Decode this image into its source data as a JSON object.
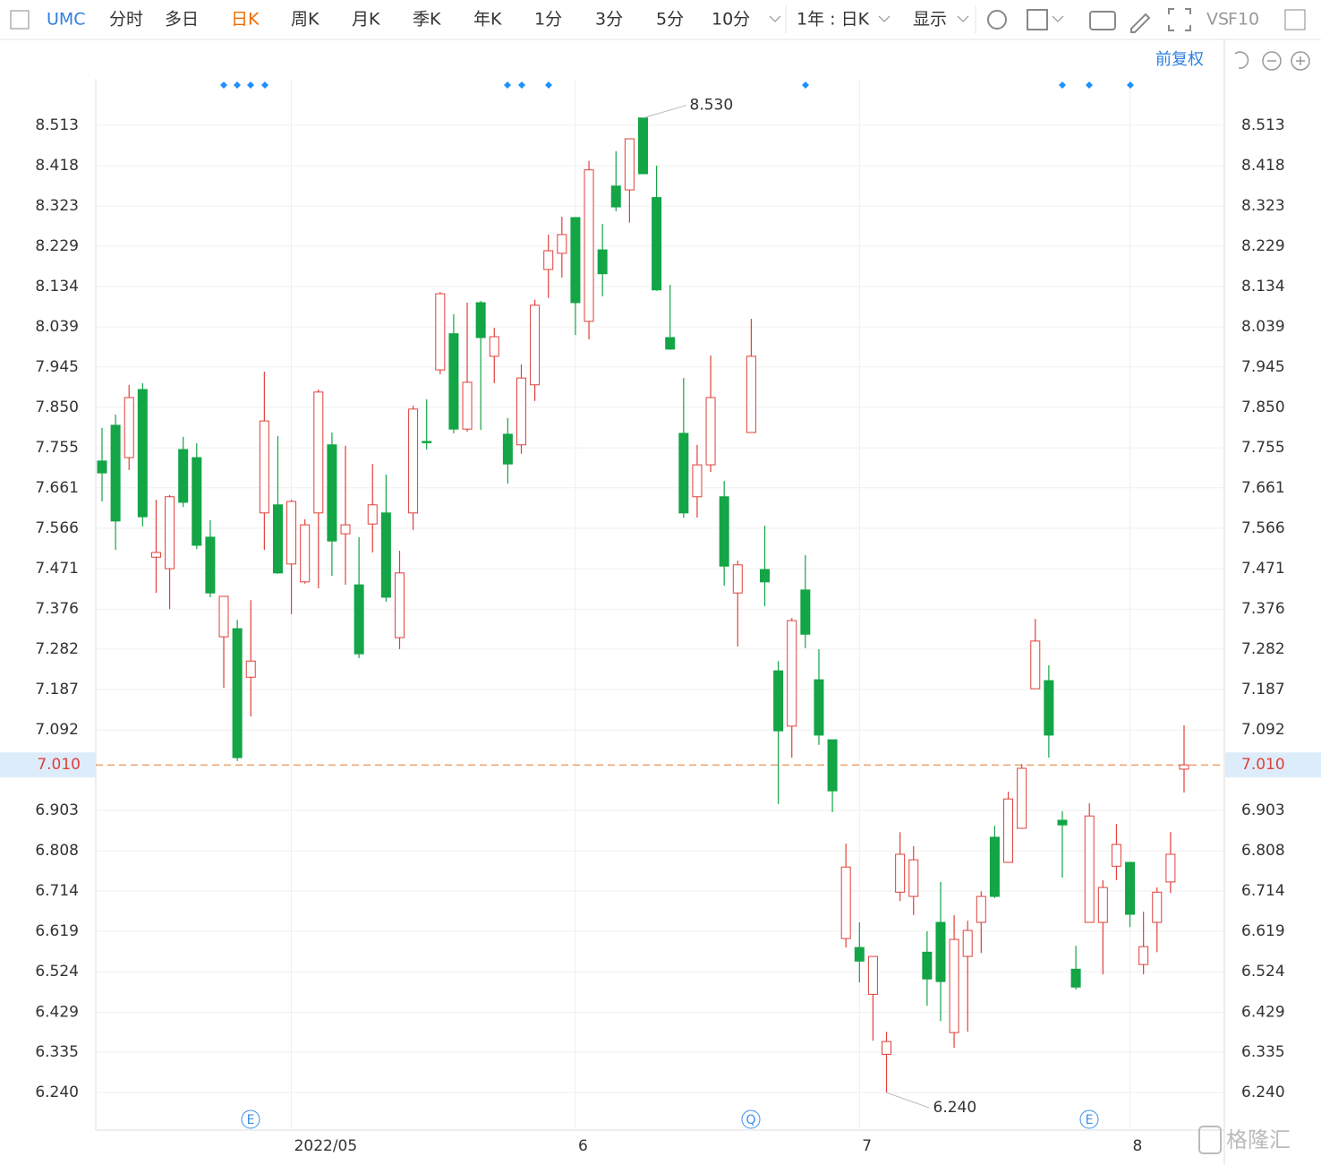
{
  "toolbar": {
    "symbol": "UMC",
    "periods": [
      "分时",
      "多日",
      "日K",
      "周K",
      "月K",
      "季K",
      "年K",
      "1分",
      "3分",
      "5分",
      "10分"
    ],
    "active_period": 2,
    "range": "1年 : 日K",
    "display": "显示",
    "vs": "VS",
    "f10": "F10",
    "adjust": "前复权"
  },
  "watermark": "格隆汇",
  "chart_data": {
    "type": "candlestick",
    "categories": [
      null,
      null,
      null,
      null,
      null,
      null,
      null,
      null,
      null,
      null,
      null,
      null,
      null,
      null,
      "2022/05",
      null,
      null,
      null,
      null,
      null,
      null,
      null,
      null,
      null,
      null,
      null,
      null,
      null,
      null,
      null,
      null,
      null,
      null,
      null,
      null,
      "6",
      null,
      null,
      null,
      null,
      null,
      null,
      null,
      null,
      null,
      null,
      null,
      null,
      null,
      null,
      null,
      null,
      null,
      null,
      null,
      null,
      "7",
      null,
      null,
      null,
      null,
      null,
      null,
      null,
      null,
      null,
      null,
      null,
      null,
      null,
      null,
      null,
      null,
      null,
      null,
      null,
      "8",
      null,
      null,
      null,
      null
    ],
    "open": [
      7.724,
      7.808,
      7.732,
      7.892,
      7.498,
      7.471,
      7.751,
      7.732,
      7.545,
      7.311,
      7.33,
      7.216,
      7.602,
      7.621,
      7.482,
      7.44,
      7.602,
      7.762,
      7.553,
      7.433,
      7.576,
      7.602,
      7.309,
      7.602,
      7.77,
      7.938,
      8.023,
      7.799,
      8.096,
      7.97,
      7.787,
      7.762,
      7.903,
      8.174,
      8.212,
      8.296,
      8.052,
      8.22,
      8.37,
      8.361,
      8.53,
      8.343,
      8.014,
      7.789,
      7.64,
      7.715,
      7.64,
      7.414,
      7.791,
      7.469,
      7.231,
      7.101,
      7.421,
      7.21,
      7.069,
      6.602,
      6.581,
      6.471,
      6.33,
      6.711,
      6.701,
      6.57,
      6.64,
      6.381,
      6.56,
      6.64,
      6.84,
      6.781,
      6.861,
      7.189,
      7.208,
      6.88,
      6.53,
      6.64,
      6.64,
      6.772,
      6.781,
      6.541,
      6.64,
      6.735,
      7.0
    ],
    "high": [
      7.802,
      7.833,
      7.903,
      7.907,
      7.633,
      7.644,
      7.781,
      7.766,
      7.585,
      7.406,
      7.351,
      7.397,
      7.934,
      7.783,
      7.633,
      7.587,
      7.892,
      7.791,
      7.76,
      7.545,
      7.717,
      7.692,
      7.513,
      7.854,
      7.869,
      8.121,
      8.069,
      8.096,
      8.1,
      8.037,
      7.825,
      7.951,
      8.103,
      8.256,
      8.298,
      8.296,
      8.429,
      8.281,
      8.452,
      8.481,
      8.53,
      8.418,
      8.138,
      7.919,
      7.762,
      7.972,
      7.677,
      7.49,
      8.058,
      7.572,
      7.254,
      7.355,
      7.503,
      7.282,
      7.069,
      6.825,
      6.64,
      6.56,
      6.383,
      6.852,
      6.819,
      6.619,
      6.735,
      6.657,
      6.644,
      6.713,
      6.867,
      6.947,
      7.012,
      7.353,
      7.244,
      6.901,
      6.585,
      6.92,
      6.739,
      6.871,
      6.781,
      6.665,
      6.722,
      6.852,
      7.103
    ],
    "low": [
      7.629,
      7.515,
      7.703,
      7.57,
      7.414,
      7.376,
      7.616,
      7.517,
      7.404,
      7.191,
      7.019,
      7.124,
      7.515,
      7.459,
      7.364,
      7.436,
      7.425,
      7.454,
      7.433,
      7.261,
      7.509,
      7.393,
      7.282,
      7.562,
      7.751,
      7.928,
      7.789,
      7.793,
      7.797,
      7.907,
      7.671,
      7.741,
      7.865,
      8.107,
      8.155,
      8.02,
      8.01,
      8.111,
      8.311,
      8.284,
      8.399,
      8.124,
      7.985,
      7.591,
      7.591,
      7.698,
      7.431,
      7.288,
      7.791,
      7.383,
      6.918,
      7.027,
      7.284,
      7.057,
      6.899,
      6.581,
      6.499,
      6.362,
      6.24,
      6.69,
      6.657,
      6.444,
      6.408,
      6.345,
      6.383,
      6.568,
      6.697,
      6.781,
      6.861,
      7.189,
      7.027,
      6.745,
      6.482,
      6.64,
      6.518,
      6.739,
      6.629,
      6.518,
      6.57,
      6.709,
      6.945
    ],
    "close": [
      7.696,
      7.583,
      7.873,
      7.593,
      7.509,
      7.64,
      7.627,
      7.526,
      7.414,
      7.406,
      7.027,
      7.254,
      7.818,
      7.461,
      7.629,
      7.574,
      7.886,
      7.536,
      7.574,
      7.271,
      7.621,
      7.404,
      7.461,
      7.846,
      7.768,
      8.117,
      7.799,
      7.909,
      8.014,
      8.016,
      7.717,
      7.919,
      8.09,
      8.218,
      8.256,
      8.096,
      8.408,
      8.164,
      8.321,
      8.481,
      8.399,
      8.126,
      7.987,
      7.602,
      7.715,
      7.873,
      7.477,
      7.48,
      7.97,
      7.44,
      7.09,
      7.349,
      7.317,
      7.08,
      6.949,
      6.77,
      6.549,
      6.56,
      6.36,
      6.8,
      6.787,
      6.507,
      6.501,
      6.6,
      6.621,
      6.701,
      6.701,
      6.93,
      7.002,
      7.301,
      7.08,
      6.869,
      6.488,
      6.89,
      6.722,
      6.823,
      6.659,
      6.583,
      6.711,
      6.8,
      7.01
    ],
    "up_color": "#e0403a",
    "down_color": "#13a546",
    "ylim": [
      6.152,
      8.622
    ],
    "yticks": [
      8.513,
      8.418,
      8.323,
      8.229,
      8.134,
      8.039,
      7.945,
      {
        "value": 7.85,
        "label": "7.850"
      },
      7.755,
      7.661,
      7.566,
      7.471,
      7.376,
      7.282,
      7.187,
      7.092,
      6.903,
      6.808,
      6.714,
      6.619,
      6.524,
      6.429,
      6.335,
      {
        "value": 6.24,
        "label": "6.240"
      }
    ],
    "grid": true,
    "last_price": {
      "value": 7.01,
      "label": "7.010"
    },
    "annotations": [
      {
        "value": 8.53,
        "label": "8.530"
      },
      {
        "value": 6.24,
        "label": "6.240"
      }
    ],
    "events": [
      "E",
      "Q",
      "E"
    ]
  }
}
